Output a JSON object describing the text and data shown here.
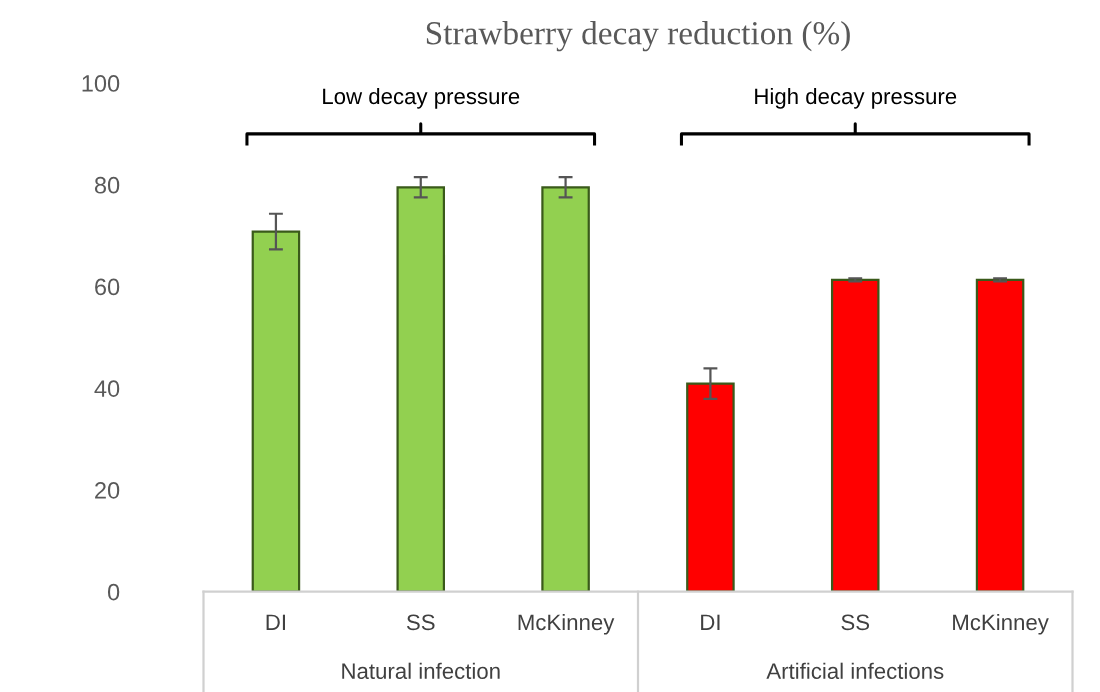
{
  "chart_data": {
    "type": "bar",
    "title": "Strawberry decay reduction (%)",
    "categories": [
      "DI",
      "SS",
      "McKinney",
      "DI",
      "SS",
      "McKinney"
    ],
    "values": [
      70.8,
      79.5,
      79.5,
      40.9,
      61.3,
      61.3
    ],
    "errors": [
      3.5,
      2,
      2,
      3,
      0.3,
      0.3
    ],
    "colors": [
      "#92d050",
      "#92d050",
      "#92d050",
      "#ff0000",
      "#ff0000",
      "#ff0000"
    ],
    "ylim": [
      0,
      100
    ],
    "yticks": [
      0,
      20,
      40,
      60,
      80,
      100
    ],
    "annotations": [
      "Low decay pressure",
      "High decay pressure",
      "Natural infection",
      "Artificial infections"
    ]
  }
}
